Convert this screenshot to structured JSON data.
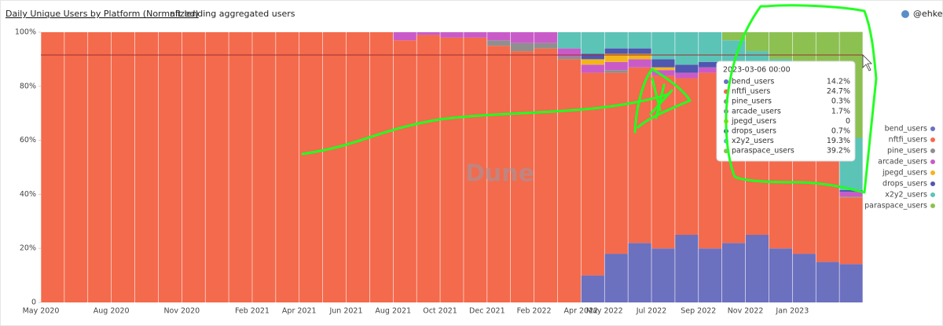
{
  "chart_data": {
    "type": "stacked-bar",
    "title": "Daily Unique Users by Platform (Normalized)",
    "subtitle": "nft lending aggregated users",
    "author": "@ehkek",
    "watermark": "Dune",
    "categories": [
      "May 2020",
      null,
      null,
      "Aug 2020",
      null,
      null,
      "Nov 2020",
      null,
      null,
      "Feb 2021",
      null,
      "Apr 2021",
      null,
      "Jun 2021",
      null,
      "Aug 2021",
      null,
      "Oct 2021",
      null,
      "Dec 2021",
      null,
      "Feb 2022",
      null,
      "Apr 2022",
      "May 2022",
      null,
      "Jul 2022",
      null,
      "Sep 2022",
      null,
      "Nov 2022",
      null,
      "Jan 2023",
      null,
      null
    ],
    "series": [
      {
        "name": "bend_users",
        "color": "#6b70bf",
        "values": [
          0,
          0,
          0,
          0,
          0,
          0,
          0,
          0,
          0,
          0,
          0,
          0,
          0,
          0,
          0,
          0,
          0,
          0,
          0,
          0,
          0,
          0,
          0,
          10,
          18,
          22,
          20,
          25,
          20,
          22,
          25,
          20,
          18,
          15,
          14.2
        ]
      },
      {
        "name": "nftfi_users",
        "color": "#f46a4c",
        "values": [
          100,
          100,
          100,
          100,
          100,
          100,
          100,
          100,
          100,
          100,
          100,
          100,
          100,
          100,
          100,
          97,
          99,
          98,
          98,
          95,
          93,
          94,
          90,
          75,
          67,
          65,
          64,
          58,
          65,
          63,
          58,
          62,
          62,
          60,
          24.7
        ]
      },
      {
        "name": "pine_users",
        "color": "#8f8f8f",
        "values": [
          0,
          0,
          0,
          0,
          0,
          0,
          0,
          0,
          0,
          0,
          0,
          0,
          0,
          0,
          0,
          0,
          0,
          0,
          0,
          2,
          3,
          2,
          1,
          0,
          1,
          0,
          0,
          0,
          0,
          0,
          0,
          0,
          0,
          0,
          0.3
        ]
      },
      {
        "name": "arcade_users",
        "color": "#c95bc8",
        "values": [
          0,
          0,
          0,
          0,
          0,
          0,
          0,
          0,
          0,
          0,
          0,
          0,
          0,
          0,
          0,
          3,
          1,
          2,
          2,
          3,
          4,
          4,
          3,
          3,
          3,
          3,
          2,
          2,
          2,
          2,
          2,
          2,
          2,
          2,
          1.7
        ]
      },
      {
        "name": "jpegd_users",
        "color": "#f2b51c",
        "values": [
          0,
          0,
          0,
          0,
          0,
          0,
          0,
          0,
          0,
          0,
          0,
          0,
          0,
          0,
          0,
          0,
          0,
          0,
          0,
          0,
          0,
          0,
          0,
          2,
          3,
          2,
          1,
          0,
          0,
          0,
          0,
          0,
          0,
          0,
          0
        ]
      },
      {
        "name": "drops_users",
        "color": "#4f57b0",
        "values": [
          0,
          0,
          0,
          0,
          0,
          0,
          0,
          0,
          0,
          0,
          0,
          0,
          0,
          0,
          0,
          0,
          0,
          0,
          0,
          0,
          0,
          0,
          0,
          2,
          2,
          2,
          3,
          3,
          2,
          2,
          2,
          1,
          1,
          1,
          0.7
        ]
      },
      {
        "name": "x2y2_users",
        "color": "#5cc3b7",
        "values": [
          0,
          0,
          0,
          0,
          0,
          0,
          0,
          0,
          0,
          0,
          0,
          0,
          0,
          0,
          0,
          0,
          0,
          0,
          0,
          0,
          0,
          0,
          6,
          8,
          6,
          6,
          10,
          12,
          11,
          8,
          6,
          5,
          5,
          6,
          19.3
        ]
      },
      {
        "name": "paraspace_users",
        "color": "#8cc152",
        "values": [
          0,
          0,
          0,
          0,
          0,
          0,
          0,
          0,
          0,
          0,
          0,
          0,
          0,
          0,
          0,
          0,
          0,
          0,
          0,
          0,
          0,
          0,
          0,
          0,
          0,
          0,
          0,
          0,
          0,
          3,
          7,
          10,
          12,
          16,
          39.2
        ]
      }
    ],
    "ylim": [
      0,
      100
    ],
    "yticks": [
      0,
      {
        "value": 20,
        "label": "20%"
      },
      {
        "value": 40,
        "label": "40%"
      },
      {
        "value": 60,
        "label": "60%"
      },
      {
        "value": 80,
        "label": "80%"
      },
      {
        "value": 100,
        "label": "100%"
      }
    ],
    "tooltip": {
      "title": "2023-03-06 00:00",
      "value_labels": [
        "14.2%",
        "24.7%",
        "0.3%",
        "1.7%",
        "0",
        "0.7%",
        "19.3%",
        "39.2%"
      ]
    },
    "legend": "right"
  }
}
